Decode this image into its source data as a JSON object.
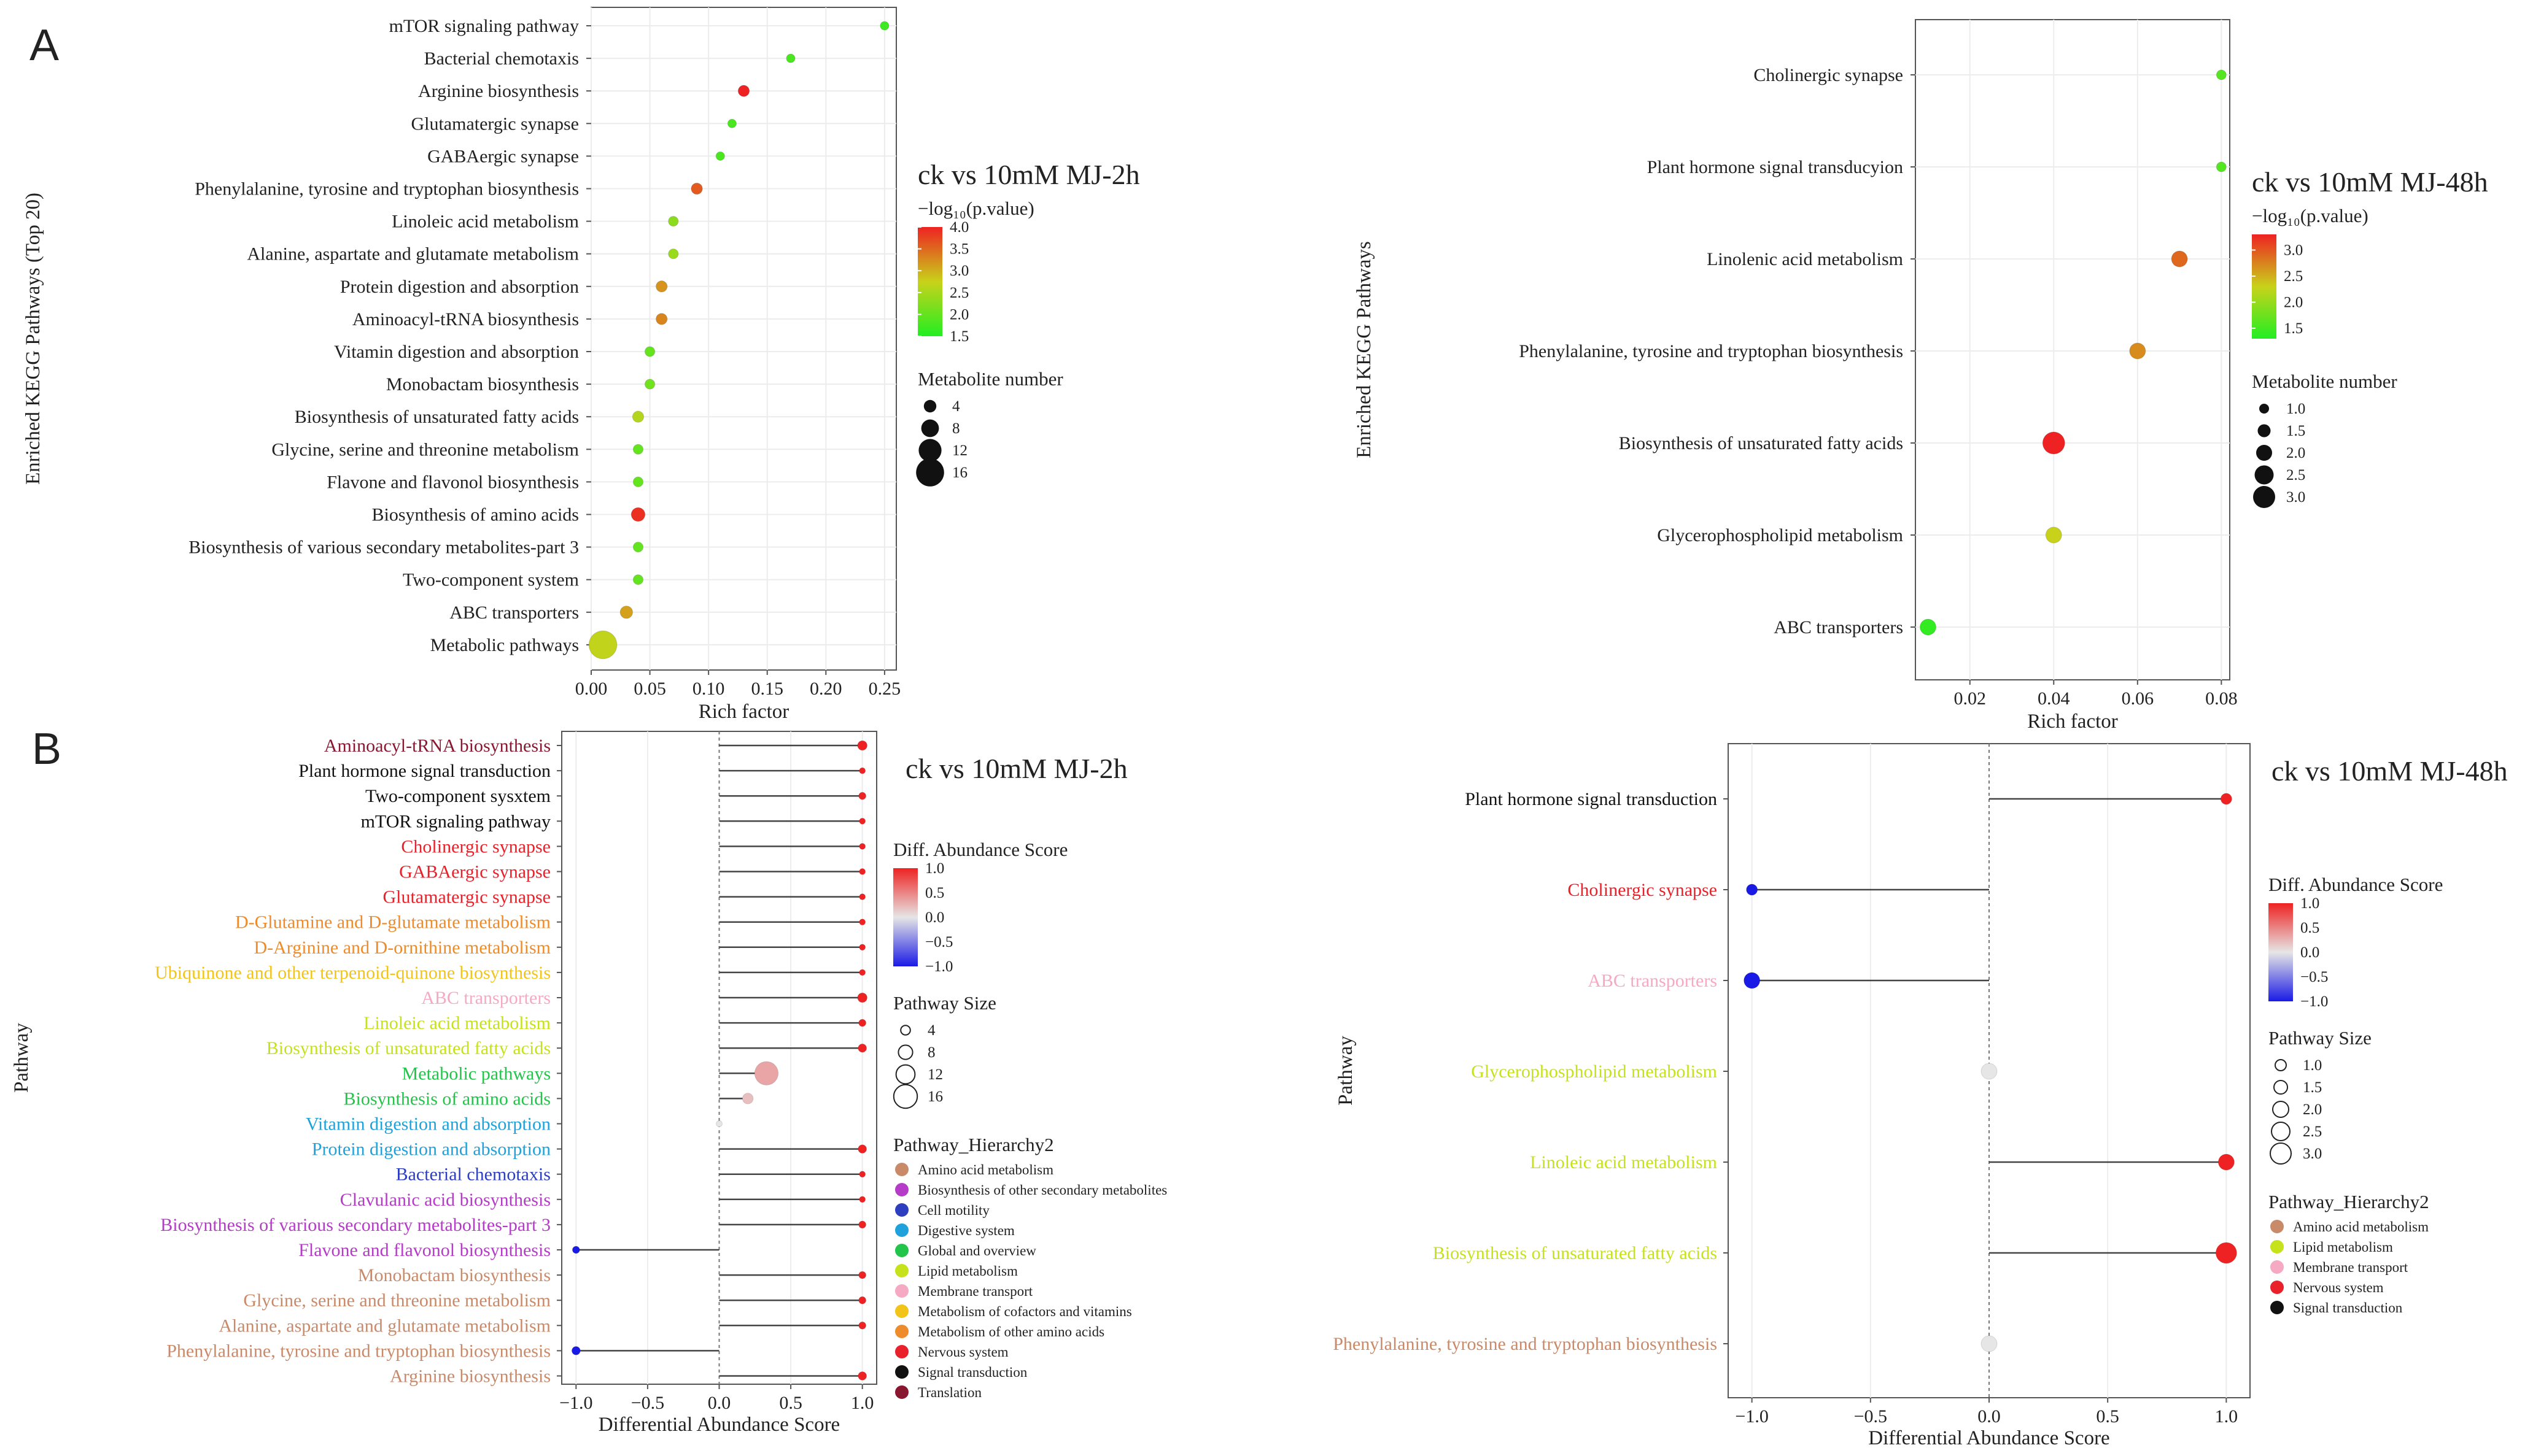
{
  "panel_labels": {
    "a": "A",
    "b": "B"
  },
  "colors": {
    "amino": "#C98A6A",
    "other_secondary": "#B43CC7",
    "motility": "#2D3FBF",
    "digestive": "#1FA2DB",
    "global": "#22C44A",
    "lipid": "#C6E21A",
    "membrane": "#F5A9C2",
    "cofactors": "#F2C418",
    "other_amino": "#EE8B2A",
    "nervous": "#E8212A",
    "signal": "#111111",
    "translation": "#8A1730",
    "neg": "#1A1AE6",
    "neutral": "#BDBDBD",
    "pos": "#E8362B"
  },
  "chart_data": [
    {
      "type": "scatter",
      "panel": "A-left",
      "title": "ck vs 10mM MJ-2h",
      "xlabel": "Rich factor",
      "ylabel": "Enriched KEGG Pathways (Top 20)",
      "xlim": [
        0,
        0.26
      ],
      "xticks": [
        "0.00",
        "0.05",
        "0.10",
        "0.15",
        "0.20",
        "0.25"
      ],
      "xtick_values": [
        0,
        0.05,
        0.1,
        0.15,
        0.2,
        0.25
      ],
      "color_legend": {
        "title": "−log₁₀(p.value)",
        "min": 1.5,
        "max": 4.0,
        "labels": [
          "4.0",
          "3.5",
          "3.0",
          "2.5",
          "2.0",
          "1.5"
        ]
      },
      "size_legend": {
        "title": "Metabolite number",
        "labels": [
          "4",
          "8",
          "12",
          "16"
        ],
        "values": [
          4,
          8,
          12,
          16
        ]
      },
      "points": [
        {
          "pathway": "mTOR signaling pathway",
          "rich": 0.25,
          "logp": 1.7,
          "n": 1
        },
        {
          "pathway": "Bacterial chemotaxis",
          "rich": 0.17,
          "logp": 1.8,
          "n": 1
        },
        {
          "pathway": "Arginine biosynthesis",
          "rich": 0.13,
          "logp": 4.0,
          "n": 3
        },
        {
          "pathway": "Glutamatergic synapse",
          "rich": 0.12,
          "logp": 1.8,
          "n": 1
        },
        {
          "pathway": "GABAergic synapse",
          "rich": 0.11,
          "logp": 1.8,
          "n": 1
        },
        {
          "pathway": "Phenylalanine, tyrosine and tryptophan biosynthesis",
          "rich": 0.09,
          "logp": 3.6,
          "n": 3
        },
        {
          "pathway": "Linoleic acid metabolism",
          "rich": 0.07,
          "logp": 2.3,
          "n": 2
        },
        {
          "pathway": "Alanine, aspartate and glutamate metabolism",
          "rich": 0.07,
          "logp": 2.4,
          "n": 2
        },
        {
          "pathway": "Protein digestion and absorption",
          "rich": 0.06,
          "logp": 3.2,
          "n": 3
        },
        {
          "pathway": "Aminoacyl-tRNA biosynthesis",
          "rich": 0.06,
          "logp": 3.3,
          "n": 3
        },
        {
          "pathway": "Vitamin digestion and absorption",
          "rich": 0.05,
          "logp": 2.0,
          "n": 2
        },
        {
          "pathway": "Monobactam biosynthesis",
          "rich": 0.05,
          "logp": 2.1,
          "n": 2
        },
        {
          "pathway": "Biosynthesis of unsaturated fatty acids",
          "rich": 0.04,
          "logp": 2.6,
          "n": 3
        },
        {
          "pathway": "Glycine, serine and threonine metabolism",
          "rich": 0.04,
          "logp": 2.0,
          "n": 2
        },
        {
          "pathway": "Flavone and flavonol biosynthesis",
          "rich": 0.04,
          "logp": 2.0,
          "n": 2
        },
        {
          "pathway": "Biosynthesis of amino acids",
          "rich": 0.04,
          "logp": 3.9,
          "n": 5
        },
        {
          "pathway": "Biosynthesis of various secondary metabolites-part 3",
          "rich": 0.04,
          "logp": 2.0,
          "n": 2
        },
        {
          "pathway": "Two-component system",
          "rich": 0.04,
          "logp": 2.0,
          "n": 2
        },
        {
          "pathway": "ABC transporters",
          "rich": 0.03,
          "logp": 3.1,
          "n": 4
        },
        {
          "pathway": "Metabolic pathways",
          "rich": 0.01,
          "logp": 2.7,
          "n": 16
        }
      ]
    },
    {
      "type": "scatter",
      "panel": "A-right",
      "title": "ck vs 10mM MJ-48h",
      "xlabel": "Rich factor",
      "ylabel": "Enriched KEGG Pathways",
      "xlim": [
        0.007,
        0.082
      ],
      "xticks": [
        "0.02",
        "0.04",
        "0.06",
        "0.08"
      ],
      "xtick_values": [
        0.02,
        0.04,
        0.06,
        0.08
      ],
      "color_legend": {
        "title": "−log₁₀(p.value)",
        "min": 1.3,
        "max": 3.3,
        "labels": [
          "3.0",
          "2.5",
          "2.0",
          "1.5"
        ]
      },
      "size_legend": {
        "title": "Metabolite number",
        "labels": [
          "1.0",
          "1.5",
          "2.0",
          "2.5",
          "3.0"
        ],
        "values": [
          1,
          1.5,
          2,
          2.5,
          3
        ]
      },
      "points": [
        {
          "pathway": "Cholinergic synapse",
          "rich": 0.08,
          "logp": 1.6,
          "n": 1
        },
        {
          "pathway": "Plant hormone signal transducyion",
          "rich": 0.08,
          "logp": 1.6,
          "n": 1
        },
        {
          "pathway": "Linolenic acid metabolism",
          "rich": 0.07,
          "logp": 2.9,
          "n": 2
        },
        {
          "pathway": "Phenylalanine, tyrosine and tryptophan biosynthesis",
          "rich": 0.06,
          "logp": 2.7,
          "n": 2
        },
        {
          "pathway": "Biosynthesis of unsaturated fatty acids",
          "rich": 0.04,
          "logp": 3.3,
          "n": 3
        },
        {
          "pathway": "Glycerophospholipid metabolism",
          "rich": 0.04,
          "logp": 2.3,
          "n": 2
        },
        {
          "pathway": "ABC transporters",
          "rich": 0.01,
          "logp": 1.4,
          "n": 2
        }
      ]
    },
    {
      "type": "lollipop",
      "panel": "B-left",
      "title": "ck vs 10mM MJ-2h",
      "xlabel": "Differential Abundance Score",
      "ylabel": "Pathway",
      "xlim": [
        -1.1,
        1.1
      ],
      "xticks": [
        "−1.0",
        "−0.5",
        "0.0",
        "0.5",
        "1.0"
      ],
      "xtick_values": [
        -1,
        -0.5,
        0,
        0.5,
        1
      ],
      "color_legend": {
        "title": "Diff. Abundance Score",
        "labels": [
          "1.0",
          "0.5",
          "0.0",
          "−0.5",
          "−1.0"
        ]
      },
      "size_legend": {
        "title": "Pathway Size",
        "labels": [
          "4",
          "8",
          "12",
          "16"
        ],
        "values": [
          4,
          8,
          12,
          16
        ]
      },
      "hierarchy_legend": {
        "title": "Pathway_Hierarchy2",
        "items": [
          {
            "label": "Amino acid metabolism",
            "color_key": "amino"
          },
          {
            "label": "Biosynthesis of other secondary metabolites",
            "color_key": "other_secondary"
          },
          {
            "label": "Cell motility",
            "color_key": "motility"
          },
          {
            "label": "Digestive system",
            "color_key": "digestive"
          },
          {
            "label": "Global and overview",
            "color_key": "global"
          },
          {
            "label": "Lipid metabolism",
            "color_key": "lipid"
          },
          {
            "label": "Membrane transport",
            "color_key": "membrane"
          },
          {
            "label": "Metabolism of cofactors and vitamins",
            "color_key": "cofactors"
          },
          {
            "label": "Metabolism of other amino acids",
            "color_key": "other_amino"
          },
          {
            "label": "Nervous system",
            "color_key": "nervous"
          },
          {
            "label": "Signal transduction",
            "color_key": "signal"
          },
          {
            "label": "Translation",
            "color_key": "translation"
          }
        ]
      },
      "rows": [
        {
          "pathway": "Aminoacyl-tRNA biosynthesis",
          "score": 1.0,
          "size": 4,
          "hier": "translation"
        },
        {
          "pathway": "Plant hormone signal transduction",
          "score": 1.0,
          "size": 1,
          "hier": "signal"
        },
        {
          "pathway": "Two-component sysxtem",
          "score": 1.0,
          "size": 2,
          "hier": "signal"
        },
        {
          "pathway": "mTOR signaling pathway",
          "score": 1.0,
          "size": 1,
          "hier": "signal"
        },
        {
          "pathway": "Cholinergic synapse",
          "score": 1.0,
          "size": 1,
          "hier": "nervous"
        },
        {
          "pathway": "GABAergic synapse",
          "score": 1.0,
          "size": 1,
          "hier": "nervous"
        },
        {
          "pathway": "Glutamatergic synapse",
          "score": 1.0,
          "size": 1,
          "hier": "nervous"
        },
        {
          "pathway": "D-Glutamine and D-glutamate metabolism",
          "score": 1.0,
          "size": 1,
          "hier": "other_amino"
        },
        {
          "pathway": "D-Arginine and D-ornithine metabolism",
          "score": 1.0,
          "size": 1,
          "hier": "other_amino"
        },
        {
          "pathway": "Ubiquinone and  other terpenoid-quinone biosynthesis",
          "score": 1.0,
          "size": 1,
          "hier": "cofactors"
        },
        {
          "pathway": "ABC transporters",
          "score": 1.0,
          "size": 4,
          "hier": "membrane"
        },
        {
          "pathway": "Linoleic acid metabolism",
          "score": 1.0,
          "size": 2,
          "hier": "lipid"
        },
        {
          "pathway": "Biosynthesis of unsaturated fatty acids",
          "score": 1.0,
          "size": 3,
          "hier": "lipid"
        },
        {
          "pathway": "Metabolic pathways",
          "score": 0.33,
          "size": 16,
          "hier": "global"
        },
        {
          "pathway": "Biosynthesis of amino acids",
          "score": 0.2,
          "size": 5,
          "hier": "global"
        },
        {
          "pathway": "Vitamin digestion and absorption",
          "score": 0.0,
          "size": 1,
          "hier": "digestive"
        },
        {
          "pathway": "Protein digestion and absorption",
          "score": 1.0,
          "size": 3,
          "hier": "digestive"
        },
        {
          "pathway": "Bacterial chemotaxis",
          "score": 1.0,
          "size": 1,
          "hier": "motility"
        },
        {
          "pathway": "Clavulanic acid biosynthesis",
          "score": 1.0,
          "size": 1,
          "hier": "other_secondary"
        },
        {
          "pathway": "Biosynthesis of various secondary metabolites-part 3",
          "score": 1.0,
          "size": 2,
          "hier": "other_secondary"
        },
        {
          "pathway": "Flavone and flavonol biosynthesis",
          "score": -1.0,
          "size": 2,
          "hier": "other_secondary"
        },
        {
          "pathway": "Monobactam biosynthesis",
          "score": 1.0,
          "size": 2,
          "hier": "amino"
        },
        {
          "pathway": "Glycine, serine and threonine metabolism",
          "score": 1.0,
          "size": 2,
          "hier": "amino"
        },
        {
          "pathway": "Alanine, aspartate and glutamate metabolism",
          "score": 1.0,
          "size": 2,
          "hier": "amino"
        },
        {
          "pathway": "Phenylalanine, tyrosine and tryptophan biosynthesis",
          "score": -1.0,
          "size": 3,
          "hier": "amino"
        },
        {
          "pathway": "Arginine biosynthesis",
          "score": 1.0,
          "size": 3,
          "hier": "amino"
        }
      ]
    },
    {
      "type": "lollipop",
      "panel": "B-right",
      "title": "ck vs 10mM MJ-48h",
      "xlabel": "Differential Abundance Score",
      "ylabel": "Pathway",
      "xlim": [
        -1.1,
        1.1
      ],
      "xticks": [
        "−1.0",
        "−0.5",
        "0.0",
        "0.5",
        "1.0"
      ],
      "xtick_values": [
        -1,
        -0.5,
        0,
        0.5,
        1
      ],
      "color_legend": {
        "title": "Diff. Abundance Score",
        "labels": [
          "1.0",
          "0.5",
          "0.0",
          "−0.5",
          "−1.0"
        ]
      },
      "size_legend": {
        "title": "Pathway Size",
        "labels": [
          "1.0",
          "1.5",
          "2.0",
          "2.5",
          "3.0"
        ],
        "values": [
          1,
          1.5,
          2,
          2.5,
          3
        ]
      },
      "hierarchy_legend": {
        "title": "Pathway_Hierarchy2",
        "items": [
          {
            "label": "Amino acid metabolism",
            "color_key": "amino"
          },
          {
            "label": "Lipid metabolism",
            "color_key": "lipid"
          },
          {
            "label": "Membrane transport",
            "color_key": "membrane"
          },
          {
            "label": "Nervous system",
            "color_key": "nervous"
          },
          {
            "label": "Signal transduction",
            "color_key": "signal"
          }
        ]
      },
      "rows": [
        {
          "pathway": "Plant hormone signal transduction",
          "score": 1.0,
          "size": 1,
          "hier": "signal"
        },
        {
          "pathway": "Cholinergic synapse",
          "score": -1.0,
          "size": 1,
          "hier": "nervous"
        },
        {
          "pathway": "ABC transporters",
          "score": -1.0,
          "size": 2,
          "hier": "membrane"
        },
        {
          "pathway": "Glycerophospholipid metabolism",
          "score": 0.0,
          "size": 2,
          "hier": "lipid"
        },
        {
          "pathway": "Linoleic acid metabolism",
          "score": 1.0,
          "size": 2,
          "hier": "lipid"
        },
        {
          "pathway": "Biosynthesis of unsaturated fatty acids",
          "score": 1.0,
          "size": 3,
          "hier": "lipid"
        },
        {
          "pathway": "Phenylalanine, tyrosine and tryptophan biosynthesis",
          "score": 0.0,
          "size": 2,
          "hier": "amino"
        }
      ]
    }
  ]
}
